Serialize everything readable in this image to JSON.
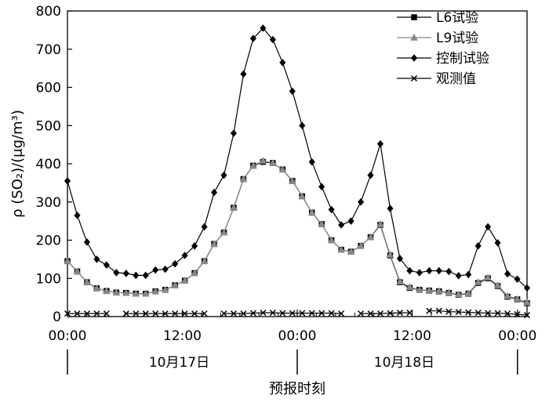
{
  "chart_data": {
    "type": "line",
    "title": "",
    "xlabel": "预报时刻",
    "ylabel": "ρ (SO₂)/(μg/m³)",
    "ylim": [
      0,
      800
    ],
    "xlim": [
      0,
      48
    ],
    "yticks": [
      0,
      100,
      200,
      300,
      400,
      500,
      600,
      700,
      800
    ],
    "xticks": [
      {
        "value": 0,
        "label": "00:00"
      },
      {
        "value": 12,
        "label": "12:00"
      },
      {
        "value": 24,
        "label": "00:00"
      },
      {
        "value": 36,
        "label": "12:00"
      },
      {
        "value": 47,
        "label": "00:00"
      }
    ],
    "date_labels": [
      {
        "label": "10月17日"
      },
      {
        "label": "10月18日"
      }
    ],
    "legend_position": "top-right",
    "grid": false,
    "series": [
      {
        "name": "L6试验",
        "marker": "square",
        "color": "#000000",
        "values": [
          145,
          118,
          90,
          74,
          67,
          63,
          62,
          60,
          60,
          66,
          70,
          82,
          94,
          114,
          145,
          190,
          220,
          285,
          360,
          395,
          405,
          402,
          385,
          355,
          315,
          272,
          242,
          200,
          175,
          170,
          185,
          208,
          240,
          160,
          90,
          75,
          70,
          68,
          66,
          62,
          57,
          60,
          88,
          100,
          80,
          52,
          45,
          35
        ]
      },
      {
        "name": "L9试验",
        "marker": "triangle",
        "color": "#888888",
        "values": [
          145,
          118,
          90,
          74,
          67,
          63,
          62,
          60,
          60,
          66,
          70,
          82,
          94,
          114,
          145,
          190,
          220,
          285,
          360,
          395,
          408,
          402,
          385,
          355,
          315,
          272,
          242,
          200,
          175,
          170,
          185,
          208,
          242,
          162,
          92,
          77,
          70,
          69,
          67,
          63,
          58,
          61,
          90,
          102,
          82,
          54,
          46,
          37
        ]
      },
      {
        "name": "控制试验",
        "marker": "diamond",
        "color": "#000000",
        "values": [
          355,
          265,
          195,
          150,
          135,
          115,
          113,
          108,
          108,
          122,
          124,
          138,
          160,
          185,
          235,
          325,
          370,
          480,
          635,
          728,
          755,
          725,
          665,
          590,
          500,
          405,
          340,
          280,
          240,
          250,
          300,
          370,
          452,
          283,
          152,
          120,
          115,
          120,
          120,
          118,
          107,
          110,
          185,
          235,
          193,
          112,
          98,
          75
        ]
      },
      {
        "name": "观测值",
        "marker": "cross",
        "color": "#000000",
        "values": [
          8,
          8,
          8,
          8,
          8,
          null,
          8,
          8,
          8,
          8,
          8,
          8,
          8,
          8,
          8,
          null,
          8,
          8,
          8,
          9,
          10,
          10,
          9,
          9,
          9,
          9,
          9,
          9,
          8,
          null,
          8,
          8,
          8,
          9,
          10,
          10,
          null,
          15,
          15,
          13,
          12,
          11,
          10,
          9,
          9,
          8,
          6,
          4
        ]
      }
    ]
  }
}
